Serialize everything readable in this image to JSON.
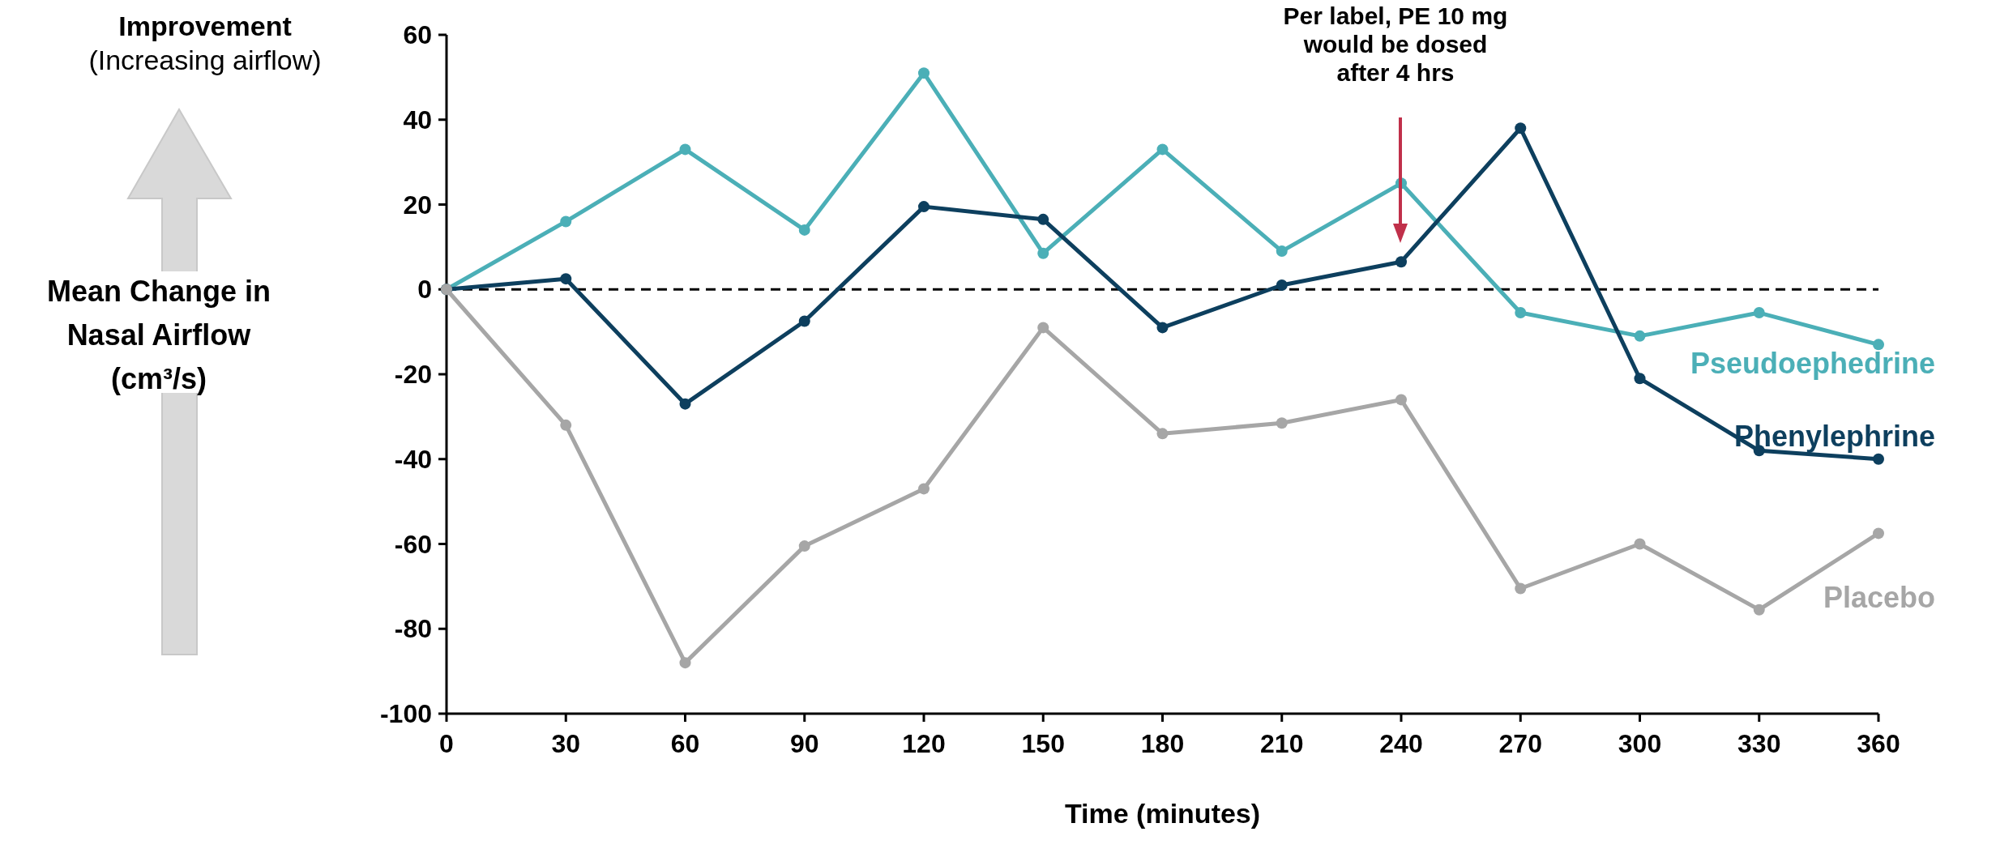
{
  "chart_data": {
    "type": "line",
    "xlabel": "Time (minutes)",
    "ylabel": "Mean Change in Nasal Airflow (cm³/s)",
    "x": [
      0,
      30,
      60,
      90,
      120,
      150,
      180,
      210,
      240,
      270,
      300,
      330,
      360
    ],
    "series": [
      {
        "name": "Pseudoephedrine",
        "color": "#4bafb7",
        "values": [
          0,
          16,
          33,
          14,
          51,
          8.5,
          33,
          9,
          25,
          -5.5,
          -11,
          -5.5,
          -13
        ]
      },
      {
        "name": "Phenylephrine",
        "color": "#0d3f5e",
        "values": [
          0,
          2.5,
          -27,
          -7.5,
          19.5,
          16.5,
          -9,
          1,
          6.5,
          38,
          -21,
          -38,
          -40
        ]
      },
      {
        "name": "Placebo",
        "color": "#a6a6a6",
        "values": [
          0,
          -32,
          -88,
          -60.5,
          -47,
          -9,
          -34,
          -31.5,
          -26,
          -70.5,
          -60,
          -75.5,
          -57.5
        ]
      }
    ],
    "xlim": [
      0,
      360
    ],
    "xticks": [
      0,
      30,
      60,
      90,
      120,
      150,
      180,
      210,
      240,
      270,
      300,
      330,
      360
    ],
    "ylim": [
      -100,
      60
    ],
    "yticks": [
      -100,
      -80,
      -60,
      -40,
      -20,
      0,
      20,
      40,
      60
    ],
    "ref_lines": [
      {
        "axis": "y",
        "value": 0,
        "color": "#000000",
        "line_style": "dashed"
      }
    ],
    "annotations": [
      "Improvement",
      "(Increasing airflow)",
      "Per label, PE 10 mg would be dosed after 4 hrs"
    ],
    "marker": "circle",
    "line_style": "solid",
    "grid": false
  }
}
